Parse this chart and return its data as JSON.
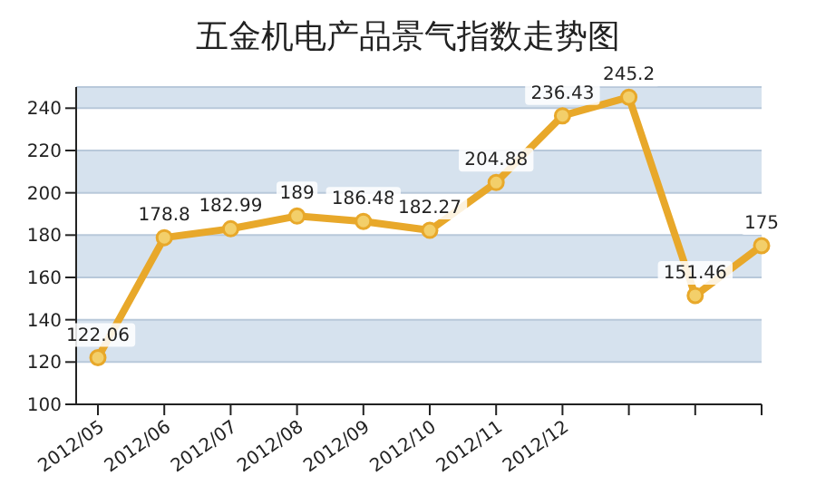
{
  "chart_data": {
    "type": "line",
    "title": "五金机电产品景气指数走势图",
    "categories": [
      "2012/05",
      "2012/06",
      "2012/07",
      "2012/08",
      "2012/09",
      "2012/10",
      "2012/11",
      "2012/12",
      null,
      null,
      null
    ],
    "series": [
      {
        "color": "#e8a82a",
        "values": [
          122.06,
          178.8,
          182.99,
          189,
          186.48,
          182.27,
          204.88,
          236.43,
          245.2,
          151.46,
          175
        ]
      }
    ],
    "ylim": [
      100,
      250
    ],
    "yticks": [
      100,
      120,
      140,
      160,
      180,
      200,
      220,
      240
    ],
    "grid": "y",
    "marker": "circle",
    "data_labels": true
  }
}
